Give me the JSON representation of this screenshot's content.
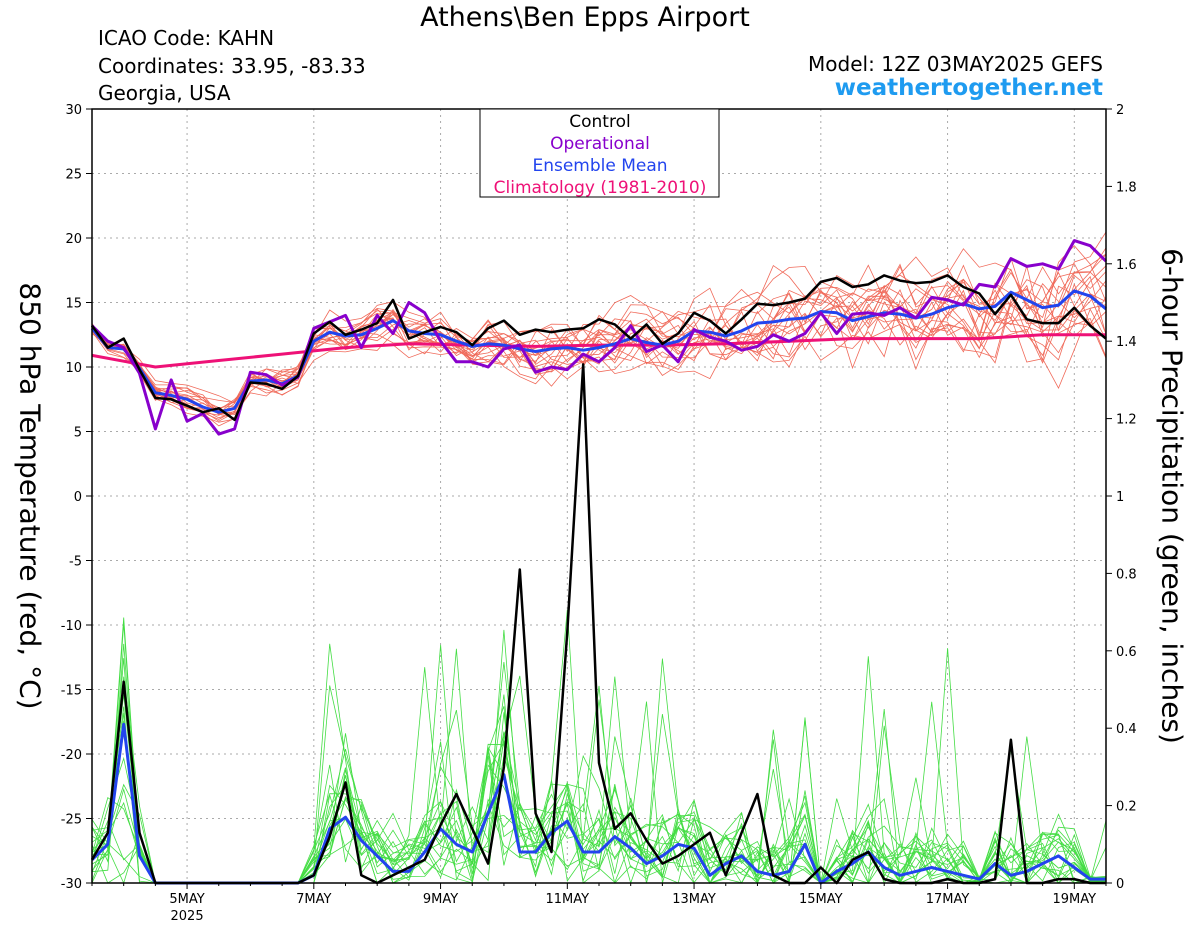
{
  "header": {
    "title": "Athens\\Ben Epps Airport",
    "icao": "ICAO Code: KAHN",
    "coordinates": "Coordinates: 33.95, -83.33",
    "region": "Georgia, USA",
    "model": "Model: 12Z 03MAY2025 GEFS",
    "site": "weathertogether.net"
  },
  "chart_data": {
    "type": "line",
    "ylabel_left": "850 hPa Temperature (red, °C)",
    "ylabel_right": "6-hour Precipitation (green, inches)",
    "y_left_range": [
      -30,
      30
    ],
    "y_right_range": [
      0,
      2
    ],
    "y_left_ticks": [
      30,
      25,
      20,
      15,
      10,
      5,
      0,
      -5,
      -10,
      -15,
      -20,
      -25,
      -30
    ],
    "y_right_ticks": [
      2,
      1.8,
      1.6,
      1.4,
      1.2,
      1,
      0.8,
      0.6,
      0.4,
      0.2,
      0
    ],
    "x_range_days": [
      3.5,
      19.5
    ],
    "x_ticks": [
      {
        "day": 5,
        "label": "5MAY",
        "sublabel": "2025"
      },
      {
        "day": 7,
        "label": "7MAY"
      },
      {
        "day": 9,
        "label": "9MAY"
      },
      {
        "day": 11,
        "label": "11MAY"
      },
      {
        "day": 13,
        "label": "13MAY"
      },
      {
        "day": 15,
        "label": "15MAY"
      },
      {
        "day": 17,
        "label": "17MAY"
      },
      {
        "day": 19,
        "label": "19MAY"
      }
    ],
    "legend": {
      "position": "top-center",
      "entries": [
        {
          "label": "Control",
          "color": "#000000"
        },
        {
          "label": "Operational",
          "color": "#8800cc"
        },
        {
          "label": "Ensemble Mean",
          "color": "#2244ee"
        },
        {
          "label": "Climatology (1981-2010)",
          "color": "#ee1177"
        }
      ]
    },
    "colors": {
      "members_temp": "#f06a5a",
      "members_precip": "#44dd44",
      "control": "#000000",
      "operational": "#8800cc",
      "mean": "#2244ee",
      "climatology": "#ee1177"
    },
    "series": {
      "temp_control": [
        [
          3.5,
          13.2
        ],
        [
          3.75,
          11.5
        ],
        [
          4.0,
          12.2
        ],
        [
          4.25,
          9.8
        ],
        [
          4.5,
          7.6
        ],
        [
          4.75,
          7.5
        ],
        [
          5.0,
          7.0
        ],
        [
          5.25,
          6.5
        ],
        [
          5.5,
          6.8
        ],
        [
          5.75,
          5.9
        ],
        [
          6.0,
          8.8
        ],
        [
          6.25,
          8.7
        ],
        [
          6.5,
          8.3
        ],
        [
          6.75,
          9.3
        ],
        [
          7.0,
          12.6
        ],
        [
          7.25,
          13.5
        ],
        [
          7.5,
          12.5
        ],
        [
          7.75,
          12.9
        ],
        [
          8.0,
          13.4
        ],
        [
          8.25,
          15.2
        ],
        [
          8.5,
          12.2
        ],
        [
          8.75,
          12.7
        ],
        [
          9.0,
          13.1
        ],
        [
          9.25,
          12.7
        ],
        [
          9.5,
          11.7
        ],
        [
          9.75,
          13.0
        ],
        [
          10.0,
          13.6
        ],
        [
          10.25,
          12.5
        ],
        [
          10.5,
          12.9
        ],
        [
          10.75,
          12.7
        ],
        [
          11.0,
          12.9
        ],
        [
          11.25,
          13.0
        ],
        [
          11.5,
          13.7
        ],
        [
          11.75,
          13.3
        ],
        [
          12.0,
          12.2
        ],
        [
          12.25,
          13.3
        ],
        [
          12.5,
          11.8
        ],
        [
          12.75,
          12.6
        ],
        [
          13.0,
          14.2
        ],
        [
          13.25,
          13.6
        ],
        [
          13.5,
          12.6
        ],
        [
          13.75,
          13.7
        ],
        [
          14.0,
          14.9
        ],
        [
          14.25,
          14.8
        ],
        [
          14.5,
          15.0
        ],
        [
          14.75,
          15.3
        ],
        [
          15.0,
          16.6
        ],
        [
          15.25,
          16.9
        ],
        [
          15.5,
          16.2
        ],
        [
          15.75,
          16.4
        ],
        [
          16.0,
          17.1
        ],
        [
          16.25,
          16.7
        ],
        [
          16.5,
          16.5
        ],
        [
          16.75,
          16.6
        ],
        [
          17.0,
          17.1
        ],
        [
          17.25,
          16.2
        ],
        [
          17.5,
          15.7
        ],
        [
          17.75,
          14.1
        ],
        [
          18.0,
          15.6
        ],
        [
          18.25,
          13.7
        ],
        [
          18.5,
          13.4
        ],
        [
          18.75,
          13.4
        ],
        [
          19.0,
          14.6
        ],
        [
          19.25,
          13.2
        ],
        [
          19.5,
          12.2
        ]
      ],
      "temp_operational": [
        [
          3.5,
          13.2
        ],
        [
          3.75,
          12.0
        ],
        [
          4.0,
          11.5
        ],
        [
          4.25,
          9.5
        ],
        [
          4.5,
          5.2
        ],
        [
          4.75,
          9.0
        ],
        [
          5.0,
          5.8
        ],
        [
          5.25,
          6.4
        ],
        [
          5.5,
          4.8
        ],
        [
          5.75,
          5.2
        ],
        [
          6.0,
          9.6
        ],
        [
          6.25,
          9.4
        ],
        [
          6.5,
          8.6
        ],
        [
          6.75,
          9.2
        ],
        [
          7.0,
          13.0
        ],
        [
          7.25,
          13.5
        ],
        [
          7.5,
          14.0
        ],
        [
          7.75,
          11.5
        ],
        [
          8.0,
          14.0
        ],
        [
          8.25,
          12.6
        ],
        [
          8.5,
          15.0
        ],
        [
          8.75,
          14.2
        ],
        [
          9.0,
          12.0
        ],
        [
          9.25,
          10.4
        ],
        [
          9.5,
          10.4
        ],
        [
          9.75,
          10.0
        ],
        [
          10.0,
          11.4
        ],
        [
          10.25,
          11.7
        ],
        [
          10.5,
          9.6
        ],
        [
          10.75,
          10.0
        ],
        [
          11.0,
          9.8
        ],
        [
          11.25,
          11.0
        ],
        [
          11.5,
          10.4
        ],
        [
          11.75,
          11.5
        ],
        [
          12.0,
          13.2
        ],
        [
          12.25,
          11.2
        ],
        [
          12.5,
          11.7
        ],
        [
          12.75,
          10.4
        ],
        [
          13.0,
          12.9
        ],
        [
          13.25,
          12.3
        ],
        [
          13.5,
          12.0
        ],
        [
          13.75,
          11.3
        ],
        [
          14.0,
          11.6
        ],
        [
          14.25,
          12.5
        ],
        [
          14.5,
          12.0
        ],
        [
          14.75,
          12.6
        ],
        [
          15.0,
          14.2
        ],
        [
          15.25,
          12.6
        ],
        [
          15.5,
          14.1
        ],
        [
          15.75,
          14.2
        ],
        [
          16.0,
          14.0
        ],
        [
          16.25,
          14.6
        ],
        [
          16.5,
          13.8
        ],
        [
          16.75,
          15.4
        ],
        [
          17.0,
          15.2
        ],
        [
          17.25,
          14.8
        ],
        [
          17.5,
          16.4
        ],
        [
          17.75,
          16.2
        ],
        [
          18.0,
          18.4
        ],
        [
          18.25,
          17.8
        ],
        [
          18.5,
          18.0
        ],
        [
          18.75,
          17.6
        ],
        [
          19.0,
          19.8
        ],
        [
          19.25,
          19.4
        ],
        [
          19.5,
          18.2
        ]
      ],
      "temp_mean": [
        [
          3.5,
          13.0
        ],
        [
          3.75,
          11.5
        ],
        [
          4.0,
          11.4
        ],
        [
          4.25,
          9.9
        ],
        [
          4.5,
          8.0
        ],
        [
          4.75,
          7.8
        ],
        [
          5.0,
          7.5
        ],
        [
          5.25,
          6.9
        ],
        [
          5.5,
          6.5
        ],
        [
          5.75,
          6.8
        ],
        [
          6.0,
          8.9
        ],
        [
          6.25,
          9.0
        ],
        [
          6.5,
          8.7
        ],
        [
          6.75,
          9.3
        ],
        [
          7.0,
          12.0
        ],
        [
          7.25,
          12.7
        ],
        [
          7.5,
          12.4
        ],
        [
          7.75,
          12.5
        ],
        [
          8.0,
          13.0
        ],
        [
          8.25,
          13.6
        ],
        [
          8.5,
          12.8
        ],
        [
          8.75,
          12.6
        ],
        [
          9.0,
          12.5
        ],
        [
          9.25,
          12.0
        ],
        [
          9.5,
          11.6
        ],
        [
          9.75,
          11.8
        ],
        [
          10.0,
          11.7
        ],
        [
          10.25,
          11.4
        ],
        [
          10.5,
          11.2
        ],
        [
          10.75,
          11.4
        ],
        [
          11.0,
          11.5
        ],
        [
          11.25,
          11.3
        ],
        [
          11.5,
          11.5
        ],
        [
          11.75,
          11.8
        ],
        [
          12.0,
          12.2
        ],
        [
          12.25,
          11.9
        ],
        [
          12.5,
          11.7
        ],
        [
          12.75,
          12.0
        ],
        [
          13.0,
          12.8
        ],
        [
          13.25,
          12.7
        ],
        [
          13.5,
          12.4
        ],
        [
          13.75,
          12.8
        ],
        [
          14.0,
          13.4
        ],
        [
          14.25,
          13.5
        ],
        [
          14.5,
          13.7
        ],
        [
          14.75,
          13.8
        ],
        [
          15.0,
          14.3
        ],
        [
          15.25,
          14.2
        ],
        [
          15.5,
          13.6
        ],
        [
          15.75,
          13.9
        ],
        [
          16.0,
          14.2
        ],
        [
          16.25,
          14.1
        ],
        [
          16.5,
          13.8
        ],
        [
          16.75,
          14.1
        ],
        [
          17.0,
          14.6
        ],
        [
          17.25,
          14.9
        ],
        [
          17.5,
          14.5
        ],
        [
          17.75,
          14.7
        ],
        [
          18.0,
          15.8
        ],
        [
          18.25,
          15.2
        ],
        [
          18.5,
          14.6
        ],
        [
          18.75,
          14.8
        ],
        [
          19.0,
          15.9
        ],
        [
          19.25,
          15.5
        ],
        [
          19.5,
          14.5
        ]
      ],
      "temp_climatology": [
        [
          3.5,
          10.9
        ],
        [
          4.5,
          10.0
        ],
        [
          5.5,
          10.5
        ],
        [
          6.5,
          11.0
        ],
        [
          7.5,
          11.5
        ],
        [
          8.5,
          11.8
        ],
        [
          9.5,
          11.7
        ],
        [
          10.5,
          11.6
        ],
        [
          11.5,
          11.7
        ],
        [
          12.5,
          11.7
        ],
        [
          13.5,
          11.8
        ],
        [
          14.5,
          12.0
        ],
        [
          15.5,
          12.2
        ],
        [
          16.5,
          12.2
        ],
        [
          17.5,
          12.2
        ],
        [
          18.5,
          12.5
        ],
        [
          19.5,
          12.5
        ]
      ],
      "precip_control": [
        [
          3.5,
          0.06
        ],
        [
          3.75,
          0.13
        ],
        [
          4.0,
          0.52
        ],
        [
          4.25,
          0.13
        ],
        [
          4.5,
          0
        ],
        [
          4.75,
          0
        ],
        [
          5.0,
          0
        ],
        [
          5.25,
          0
        ],
        [
          5.5,
          0
        ],
        [
          5.75,
          0
        ],
        [
          6.0,
          0
        ],
        [
          6.25,
          0
        ],
        [
          6.5,
          0
        ],
        [
          6.75,
          0
        ],
        [
          7.0,
          0.02
        ],
        [
          7.25,
          0.12
        ],
        [
          7.5,
          0.26
        ],
        [
          7.75,
          0.02
        ],
        [
          8.0,
          0
        ],
        [
          8.25,
          0.02
        ],
        [
          8.5,
          0.04
        ],
        [
          8.75,
          0.06
        ],
        [
          9.0,
          0.15
        ],
        [
          9.25,
          0.23
        ],
        [
          9.5,
          0.14
        ],
        [
          9.75,
          0.05
        ],
        [
          10.0,
          0.3
        ],
        [
          10.25,
          0.81
        ],
        [
          10.5,
          0.18
        ],
        [
          10.75,
          0.08
        ],
        [
          11.0,
          0.65
        ],
        [
          11.25,
          1.34
        ],
        [
          11.5,
          0.31
        ],
        [
          11.75,
          0.14
        ],
        [
          12.0,
          0.18
        ],
        [
          12.25,
          0.11
        ],
        [
          12.5,
          0.05
        ],
        [
          12.75,
          0.07
        ],
        [
          13.0,
          0.1
        ],
        [
          13.25,
          0.13
        ],
        [
          13.5,
          0.02
        ],
        [
          13.75,
          0.13
        ],
        [
          14.0,
          0.23
        ],
        [
          14.25,
          0.02
        ],
        [
          14.5,
          0
        ],
        [
          14.75,
          0
        ],
        [
          15.0,
          0.04
        ],
        [
          15.25,
          0
        ],
        [
          15.5,
          0.06
        ],
        [
          15.75,
          0.08
        ],
        [
          16.0,
          0.01
        ],
        [
          16.25,
          0
        ],
        [
          16.5,
          0
        ],
        [
          16.75,
          0
        ],
        [
          17.0,
          0.01
        ],
        [
          17.25,
          0
        ],
        [
          17.5,
          0
        ],
        [
          17.75,
          0.01
        ],
        [
          18.0,
          0.37
        ],
        [
          18.25,
          0
        ],
        [
          18.5,
          0
        ],
        [
          18.75,
          0.01
        ],
        [
          19.0,
          0.01
        ],
        [
          19.25,
          0
        ],
        [
          19.5,
          0
        ]
      ],
      "precip_mean": [
        [
          3.5,
          0.06
        ],
        [
          3.75,
          0.1
        ],
        [
          4.0,
          0.41
        ],
        [
          4.25,
          0.07
        ],
        [
          4.5,
          0
        ],
        [
          4.75,
          0
        ],
        [
          5.0,
          0
        ],
        [
          5.25,
          0
        ],
        [
          5.5,
          0
        ],
        [
          5.75,
          0
        ],
        [
          6.0,
          0
        ],
        [
          6.25,
          0
        ],
        [
          6.5,
          0
        ],
        [
          6.75,
          0
        ],
        [
          7.0,
          0.02
        ],
        [
          7.25,
          0.14
        ],
        [
          7.5,
          0.17
        ],
        [
          7.75,
          0.11
        ],
        [
          8.0,
          0.07
        ],
        [
          8.25,
          0.03
        ],
        [
          8.5,
          0.03
        ],
        [
          8.75,
          0.08
        ],
        [
          9.0,
          0.14
        ],
        [
          9.25,
          0.1
        ],
        [
          9.5,
          0.08
        ],
        [
          9.75,
          0.18
        ],
        [
          10.0,
          0.28
        ],
        [
          10.25,
          0.08
        ],
        [
          10.5,
          0.08
        ],
        [
          10.75,
          0.13
        ],
        [
          11.0,
          0.16
        ],
        [
          11.25,
          0.08
        ],
        [
          11.5,
          0.08
        ],
        [
          11.75,
          0.12
        ],
        [
          12.0,
          0.09
        ],
        [
          12.25,
          0.05
        ],
        [
          12.5,
          0.07
        ],
        [
          12.75,
          0.1
        ],
        [
          13.0,
          0.09
        ],
        [
          13.25,
          0.02
        ],
        [
          13.5,
          0.05
        ],
        [
          13.75,
          0.07
        ],
        [
          14.0,
          0.03
        ],
        [
          14.25,
          0.02
        ],
        [
          14.5,
          0.03
        ],
        [
          14.75,
          0.1
        ],
        [
          15.0,
          0
        ],
        [
          15.25,
          0.03
        ],
        [
          15.5,
          0.05
        ],
        [
          15.75,
          0.08
        ],
        [
          16.0,
          0.04
        ],
        [
          16.25,
          0.02
        ],
        [
          16.5,
          0.03
        ],
        [
          16.75,
          0.04
        ],
        [
          17.0,
          0.03
        ],
        [
          17.25,
          0.02
        ],
        [
          17.5,
          0.01
        ],
        [
          17.75,
          0.05
        ],
        [
          18.0,
          0.02
        ],
        [
          18.25,
          0.03
        ],
        [
          18.5,
          0.05
        ],
        [
          18.75,
          0.07
        ],
        [
          19.0,
          0.04
        ],
        [
          19.25,
          0.01
        ],
        [
          19.5,
          0.01
        ]
      ]
    }
  }
}
